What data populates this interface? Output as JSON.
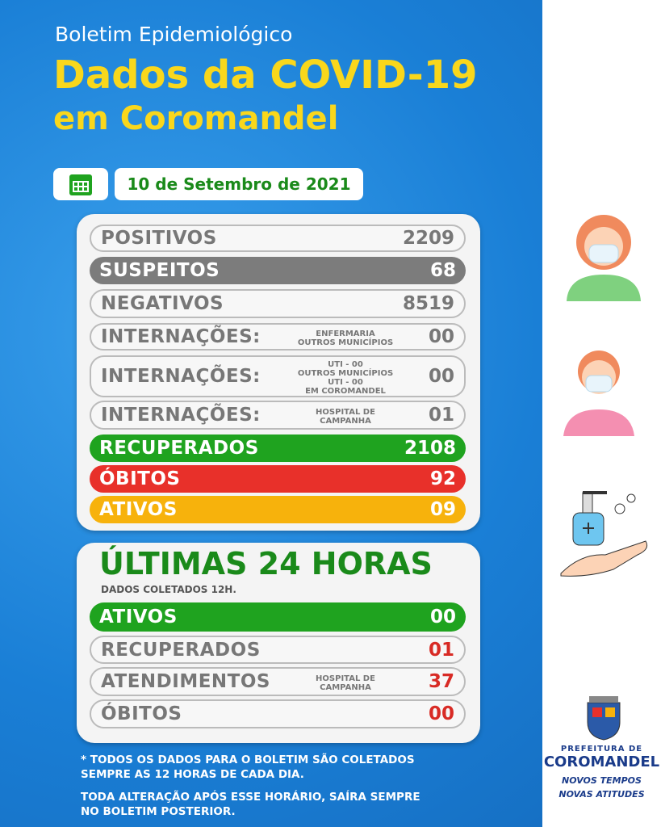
{
  "header": {
    "kicker": "Boletim Epidemiológico",
    "title_lines": [
      "Dados da COVID-19",
      "em Coromandel"
    ],
    "date": "10 de Setembro de 2021"
  },
  "totals": {
    "rows": [
      {
        "label": "POSITIVOS",
        "value": "2209"
      },
      {
        "label": "SUSPEITOS",
        "value": "68"
      },
      {
        "label": "NEGATIVOS",
        "value": "8519"
      },
      {
        "label": "INTERNAÇÕES:",
        "notes": [
          "ENFERMARIA",
          "OUTROS MUNICÍPIOS"
        ],
        "value": "00"
      },
      {
        "label": "INTERNAÇÕES:",
        "notes": [
          "UTI - 00",
          "OUTROS MUNICÍPIOS",
          "UTI - 00",
          "EM COROMANDEL"
        ],
        "value": "00"
      },
      {
        "label": "INTERNAÇÕES:",
        "notes": [
          "HOSPITAL DE",
          "CAMPANHA"
        ],
        "value": "01"
      },
      {
        "label": "RECUPERADOS",
        "value": "2108"
      },
      {
        "label": "ÓBITOS",
        "value": "92"
      },
      {
        "label": "ATIVOS",
        "value": "09"
      }
    ]
  },
  "last24": {
    "title": "ÚLTIMAS 24 HORAS",
    "subtitle": "DADOS COLETADOS 12H.",
    "rows": [
      {
        "label": "ATIVOS",
        "value": "00"
      },
      {
        "label": "RECUPERADOS",
        "value": "01"
      },
      {
        "label": "ATENDIMENTOS",
        "notes": [
          "HOSPITAL DE",
          "CAMPANHA"
        ],
        "value": "37"
      },
      {
        "label": "ÓBITOS",
        "value": "00"
      }
    ]
  },
  "footnotes": [
    [
      "* TODOS OS DADOS PARA O BOLETIM SÃO COLETADOS",
      "SEMPRE AS 12 HORAS DE CADA DIA."
    ],
    [
      "TODA ALTERAÇÃO APÓS ESSE HORÁRIO, SAÍRA SEMPRE",
      "NO BOLETIM POSTERIOR."
    ]
  ],
  "logo": {
    "line1": "PREFEITURA DE",
    "line2": "COROMANDEL",
    "slogan": [
      "NOVOS TEMPOS",
      "NOVAS ATITUDES"
    ]
  }
}
